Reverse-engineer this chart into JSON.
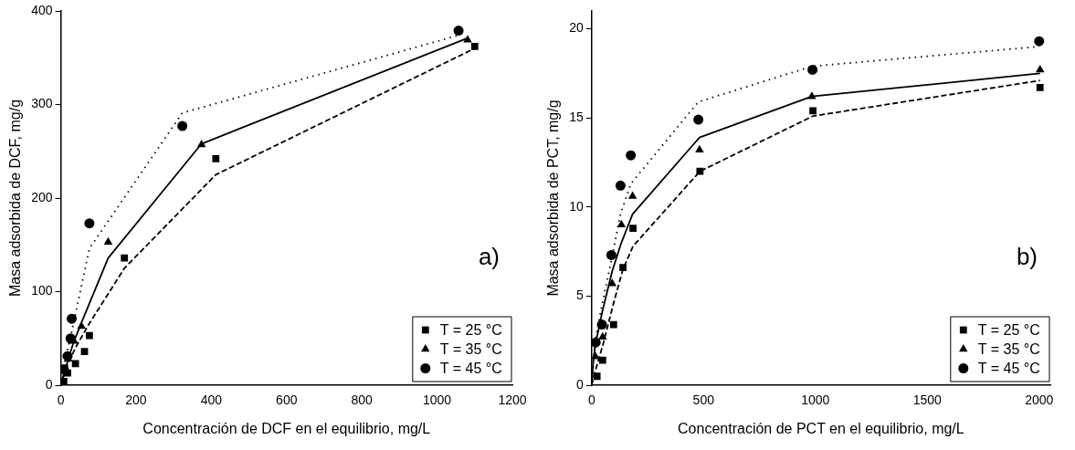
{
  "chart_data": [
    {
      "type": "scatter",
      "xlabel": "Concentración de DCF en el equilibrio, mg/L",
      "ylabel": "Masa adsorbida de DCF, mg/g",
      "xlim": [
        0,
        1200
      ],
      "xticks": [
        0,
        200,
        400,
        600,
        800,
        1000,
        1200
      ],
      "ylim": [
        0,
        400
      ],
      "yticks": [
        0,
        100,
        200,
        300,
        400
      ],
      "legend": "bottom right",
      "grid": false,
      "annotations": [
        "a)"
      ],
      "series": [
        {
          "name": "T = 25 °C",
          "marker": "square",
          "color": "#000000",
          "x": [
            8,
            18,
            39,
            63,
            76,
            169,
            412,
            1100
          ],
          "values": [
            4,
            13,
            23,
            36,
            53,
            136,
            242,
            362
          ]
        },
        {
          "name": "T = 35 °C",
          "marker": "triangle",
          "color": "#000000",
          "x": [
            20,
            35,
            55,
            126,
            374,
            1081
          ],
          "values": [
            28,
            47,
            63,
            153,
            257,
            369
          ]
        },
        {
          "name": "T = 45 °C",
          "marker": "circle",
          "color": "#000000",
          "x": [
            8,
            18,
            26,
            29,
            76,
            323,
            1057
          ],
          "values": [
            17,
            31,
            50,
            71,
            173,
            277,
            379
          ]
        },
        {
          "type": "line",
          "marker": "none",
          "line_style": "dashed",
          "color": "#000000",
          "x": [
            0,
            8,
            18,
            39,
            63,
            76,
            169,
            412,
            1100
          ],
          "values": [
            0,
            10,
            22,
            40,
            57,
            66,
            125,
            225,
            360
          ]
        },
        {
          "type": "line",
          "marker": "none",
          "line_style": "solid",
          "color": "#000000",
          "x": [
            0,
            8,
            20,
            35,
            55,
            126,
            374,
            1081
          ],
          "values": [
            0,
            12,
            28,
            47,
            67,
            136,
            258,
            371
          ]
        },
        {
          "type": "line",
          "marker": "none",
          "line_style": "dotted",
          "color": "#000000",
          "x": [
            0,
            8,
            18,
            26,
            29,
            76,
            323,
            1057
          ],
          "values": [
            0,
            20,
            38,
            52,
            57,
            146,
            291,
            374
          ]
        }
      ]
    },
    {
      "type": "scatter",
      "xlabel": "Concentración de PCT en el equilibrio, mg/L",
      "ylabel": "Masa adsorbida de PCT, mg/g",
      "xlim": [
        0,
        2050
      ],
      "xticks": [
        0,
        500,
        1000,
        1500,
        2000
      ],
      "ylim": [
        0,
        21
      ],
      "yticks": [
        0,
        5,
        10,
        15,
        20
      ],
      "legend": "bottom right",
      "grid": false,
      "annotations": [
        "b)"
      ],
      "series": [
        {
          "name": "T = 25 °C",
          "marker": "square",
          "color": "#000000",
          "x": [
            24,
            49,
            98,
            140,
            185,
            484,
            989,
            2004
          ],
          "values": [
            0.5,
            1.4,
            3.4,
            6.6,
            8.8,
            12,
            15.4,
            16.7
          ]
        },
        {
          "name": "T = 35 °C",
          "marker": "triangle",
          "color": "#000000",
          "x": [
            17,
            49,
            92,
            133,
            183,
            482,
            984,
            2004
          ],
          "values": [
            1.6,
            2.7,
            5.7,
            9,
            10.6,
            13.2,
            16.2,
            17.7
          ]
        },
        {
          "name": "T = 45 °C",
          "marker": "circle",
          "color": "#000000",
          "x": [
            18,
            46,
            88,
            129,
            175,
            477,
            987,
            2000
          ],
          "values": [
            2.4,
            3.4,
            7.3,
            11.2,
            12.9,
            14.9,
            17.7,
            19.3
          ]
        },
        {
          "type": "line",
          "marker": "none",
          "line_style": "dashed",
          "color": "#000000",
          "x": [
            0,
            14,
            49,
            98,
            140,
            185,
            484,
            989,
            2004
          ],
          "values": [
            0,
            0.7,
            2.2,
            4.6,
            6.5,
            7.8,
            12,
            15.1,
            17.1
          ]
        },
        {
          "type": "line",
          "marker": "none",
          "line_style": "solid",
          "color": "#000000",
          "x": [
            0,
            8,
            17,
            49,
            92,
            133,
            183,
            482,
            984,
            2004
          ],
          "values": [
            0,
            1.4,
            2.3,
            4.2,
            6.4,
            8,
            9.6,
            13.9,
            16.2,
            17.5
          ]
        },
        {
          "type": "line",
          "marker": "none",
          "line_style": "dotted",
          "color": "#000000",
          "x": [
            0,
            11,
            18,
            46,
            88,
            129,
            175,
            477,
            987,
            2000
          ],
          "values": [
            0,
            1.7,
            2.6,
            4.5,
            7,
            9.6,
            11.3,
            15.9,
            17.9,
            19
          ]
        }
      ]
    }
  ]
}
